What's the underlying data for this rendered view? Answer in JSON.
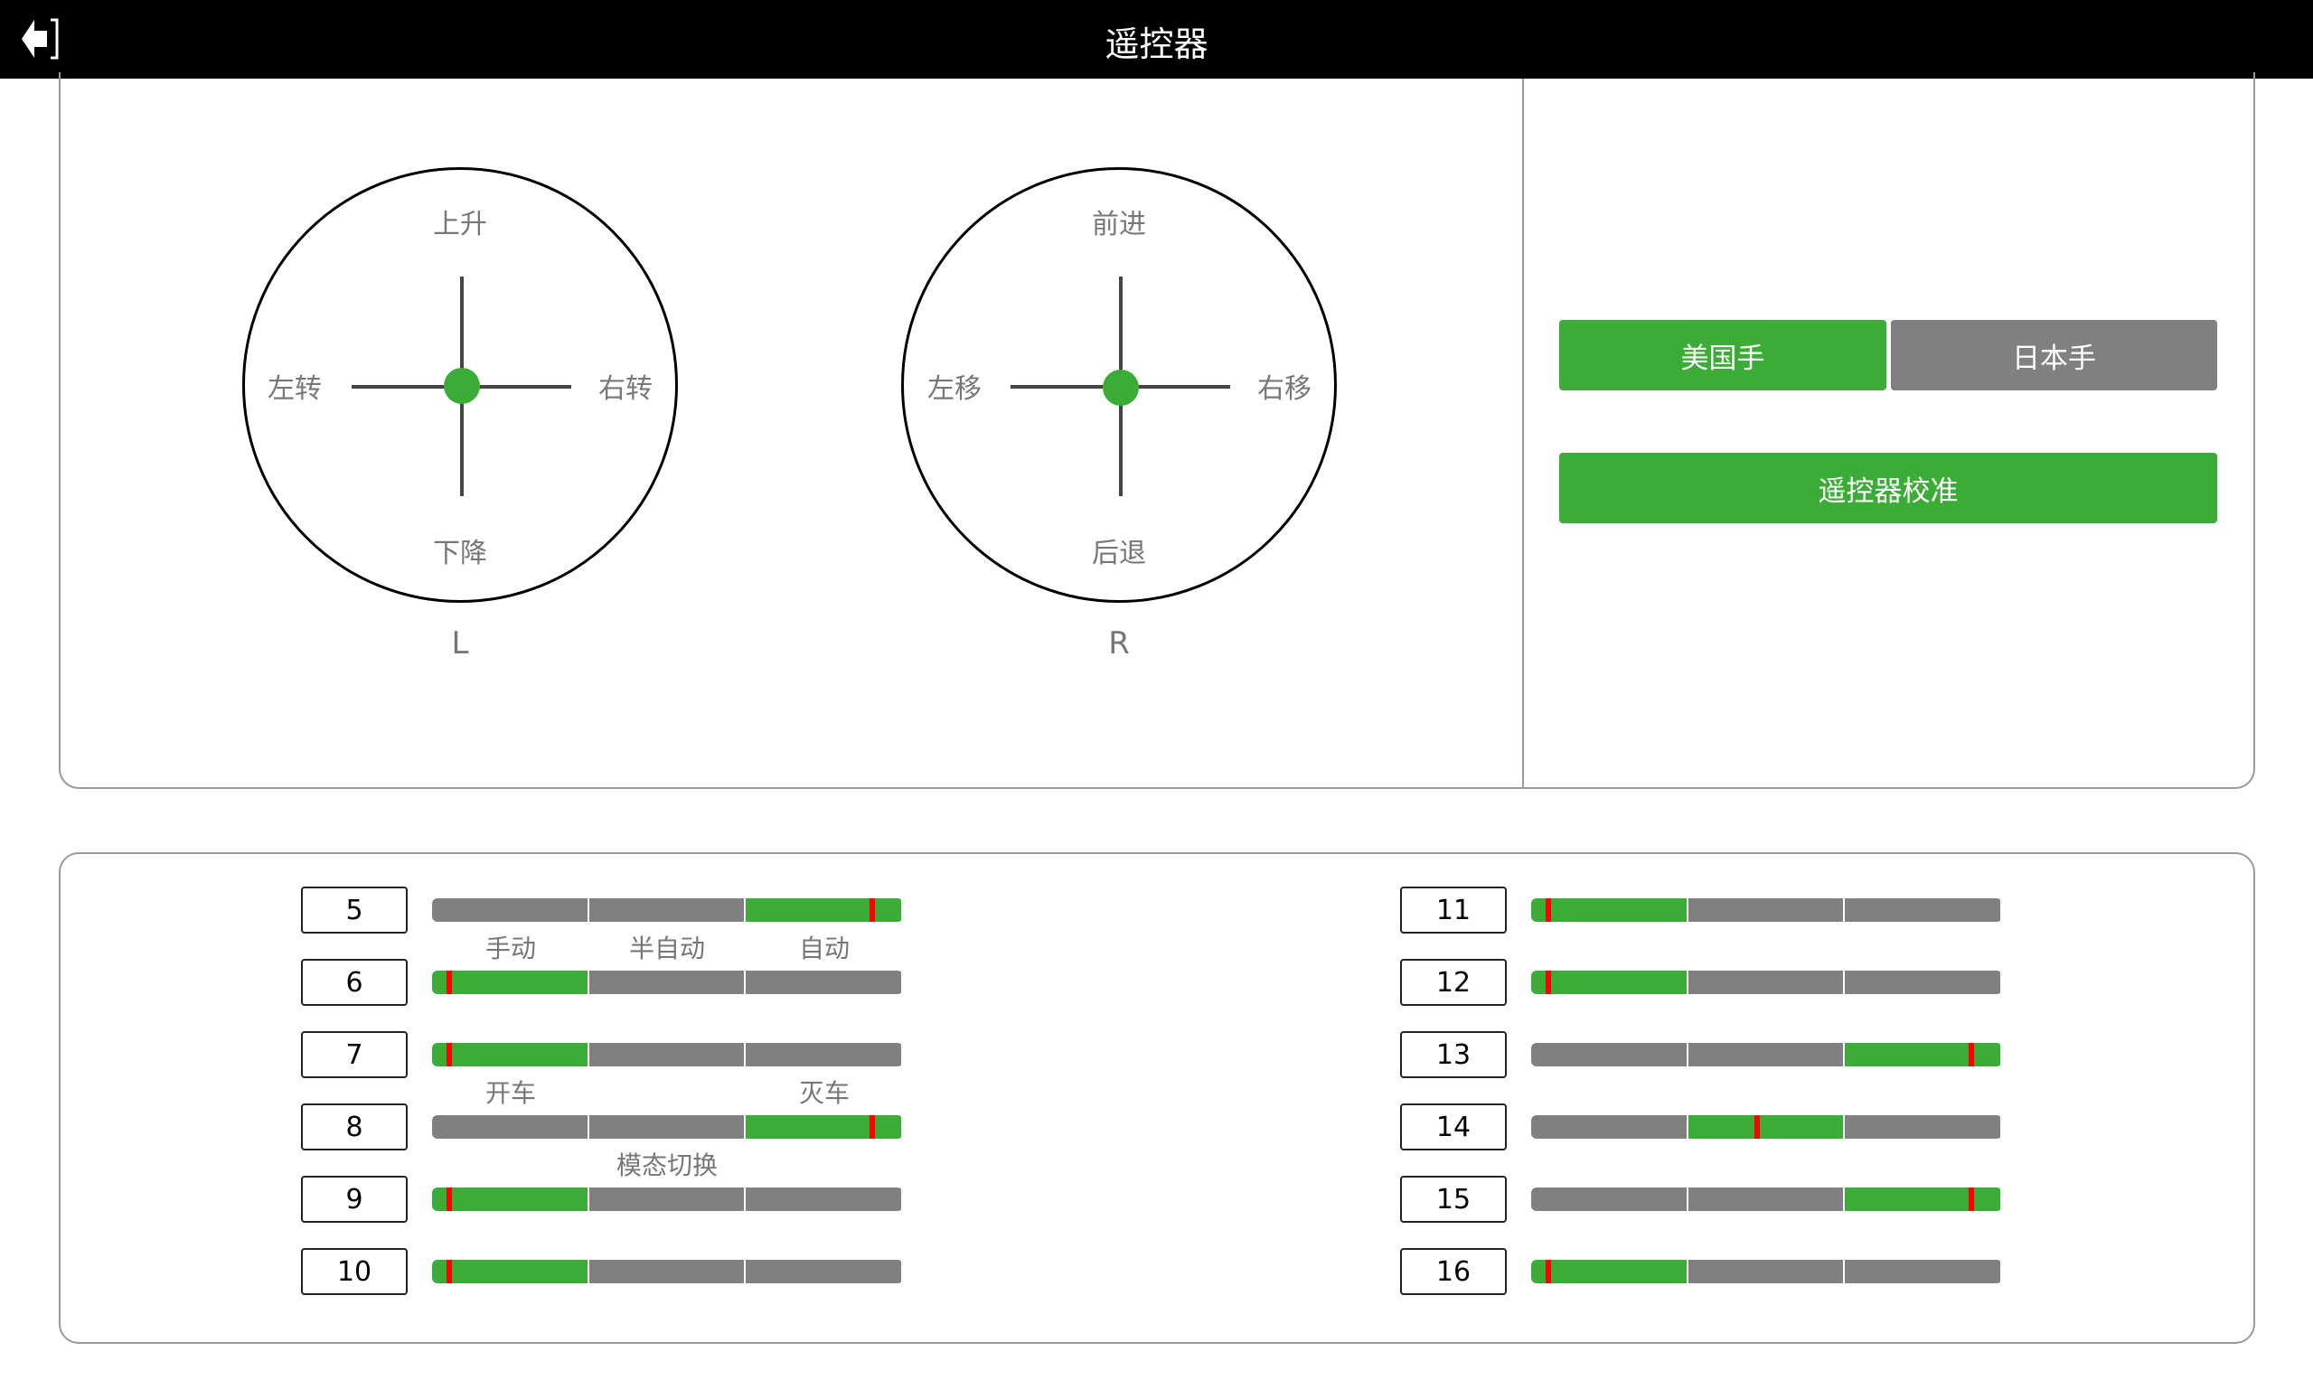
{
  "header": {
    "title": "遥控器",
    "back_icon": "exit-arrow-icon"
  },
  "sticks": {
    "left": {
      "name": "L",
      "up": "上升",
      "down": "下降",
      "left": "左转",
      "right": "右转"
    },
    "right": {
      "name": "R",
      "up": "前进",
      "down": "后退",
      "left": "左移",
      "right": "右移"
    }
  },
  "mode": {
    "american": "美国手",
    "japanese": "日本手",
    "selected": "american",
    "calibrate": "遥控器校准"
  },
  "colors": {
    "active": "#3bad37",
    "inactive": "#808080",
    "marker": "#ff0000"
  },
  "channels": [
    {
      "id": "5",
      "value": 0.935
    },
    {
      "id": "6",
      "value": 0.036
    },
    {
      "id": "7",
      "value": 0.036
    },
    {
      "id": "8",
      "value": 0.935
    },
    {
      "id": "9",
      "value": 0.036
    },
    {
      "id": "10",
      "value": 0.036
    },
    {
      "id": "11",
      "value": 0.036
    },
    {
      "id": "12",
      "value": 0.036
    },
    {
      "id": "13",
      "value": 0.935
    },
    {
      "id": "14",
      "value": 0.48
    },
    {
      "id": "15",
      "value": 0.935
    },
    {
      "id": "16",
      "value": 0.036
    }
  ],
  "channel_labels": {
    "ch5": [
      "手动",
      "半自动",
      "自动"
    ],
    "ch7": [
      "开车",
      "灭车"
    ],
    "ch8": "模态切换"
  }
}
